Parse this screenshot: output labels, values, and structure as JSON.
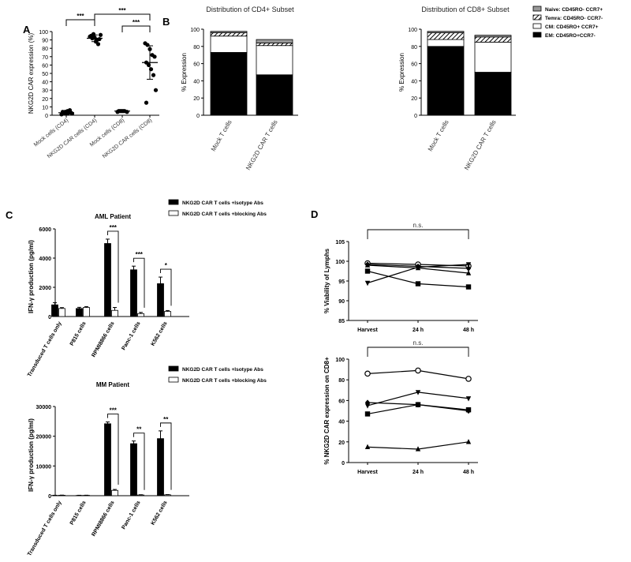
{
  "panels": {
    "a": "A",
    "b": "B",
    "c": "C",
    "d": "D"
  },
  "colors": {
    "black": "#000000",
    "gray": "#999999",
    "white": "#ffffff"
  },
  "chart_data": [
    {
      "id": "A",
      "type": "scatter",
      "ylabel": "NKG2D CAR expression (%)",
      "ylim": [
        0,
        100
      ],
      "yticks": [
        0,
        10,
        20,
        30,
        40,
        50,
        60,
        70,
        80,
        90,
        100
      ],
      "categories": [
        "Mock cells (CD4)",
        "NKG2D CAR cells (CD4)",
        "Mock cells (CD8)",
        "NKG2D CAR cells (CD8)"
      ],
      "points": [
        [
          1,
          2,
          2,
          3,
          3,
          4,
          4,
          5,
          6,
          2
        ],
        [
          94,
          92,
          93,
          90,
          91,
          95,
          97,
          88,
          85,
          96
        ],
        [
          4,
          5,
          5,
          5,
          4,
          5,
          5,
          5
        ],
        [
          86,
          84,
          79,
          72,
          70,
          63,
          60,
          55,
          48,
          30,
          15
        ]
      ],
      "means": [
        3,
        92,
        5,
        63
      ],
      "sd": [
        2,
        4,
        0.5,
        20
      ],
      "significance": [
        {
          "from": 0,
          "to": 1,
          "label": "***"
        },
        {
          "from": 1,
          "to": 3,
          "label": "***"
        },
        {
          "from": 2,
          "to": 3,
          "label": "***"
        }
      ]
    },
    {
      "id": "B1",
      "type": "bar",
      "stacked": true,
      "title": "Distribution of CD4+ Subset",
      "ylabel": "% Expression",
      "ylim": [
        0,
        100
      ],
      "yticks": [
        0,
        20,
        40,
        60,
        80,
        100
      ],
      "categories": [
        "Mock T cells",
        "NKG2D CAR T cells"
      ],
      "series": [
        {
          "name": "EM: CD45RO+CCR7-",
          "values": [
            73,
            47
          ]
        },
        {
          "name": "CM: CD45RO+ CCR7+",
          "values": [
            19,
            34
          ]
        },
        {
          "name": "Temra: CD45RO- CCR7-",
          "values": [
            4,
            3
          ]
        },
        {
          "name": "Naive: CD45RO- CCR7+",
          "values": [
            1.5,
            4
          ]
        }
      ]
    },
    {
      "id": "B2",
      "type": "bar",
      "stacked": true,
      "title": "Distribution of CD8+ Subset",
      "ylabel": "% Expression",
      "ylim": [
        0,
        100
      ],
      "yticks": [
        0,
        20,
        40,
        60,
        80,
        100
      ],
      "categories": [
        "Mock T cells",
        "NKG2D CAR T cells"
      ],
      "series": [
        {
          "name": "EM: CD45RO+CCR7-",
          "values": [
            80,
            50
          ]
        },
        {
          "name": "CM: CD45RO+ CCR7+",
          "values": [
            8,
            35
          ]
        },
        {
          "name": "Temra: CD45RO- CCR7-",
          "values": [
            8,
            6
          ]
        },
        {
          "name": "Naive: CD45RO- CCR7+",
          "values": [
            1.5,
            2
          ]
        }
      ],
      "legend": [
        "Naive: CD45RO- CCR7+",
        "Temra: CD45RO- CCR7-",
        "CM: CD45RO+ CCR7+",
        "EM: CD45RO+CCR7-"
      ]
    },
    {
      "id": "C1",
      "type": "bar",
      "title": "AML Patient",
      "ylabel": "IFN-γ production (pg/ml)",
      "ylim": [
        0,
        6000
      ],
      "yticks": [
        0,
        2000,
        4000,
        6000
      ],
      "categories": [
        "Transduced T cells only",
        "P815 cells",
        "RPMI8866 cells",
        "Panc-1 cells",
        "K562 cells"
      ],
      "series": [
        {
          "name": "NKG2D CAR T cells +Isotype Abs",
          "values": [
            800,
            550,
            5000,
            3200,
            2250
          ],
          "err": [
            150,
            80,
            300,
            250,
            450
          ]
        },
        {
          "name": "NKG2D CAR T cells +blocking Abs",
          "values": [
            550,
            620,
            420,
            200,
            350
          ],
          "err": [
            60,
            60,
            200,
            80,
            60
          ]
        }
      ],
      "significance": [
        "",
        "",
        "***",
        "***",
        "*"
      ]
    },
    {
      "id": "C2",
      "type": "bar",
      "title": "MM Patient",
      "ylabel": "IFN-γ production (pg/ml)",
      "ylim": [
        0,
        30000
      ],
      "yticks": [
        0,
        10000,
        20000,
        30000
      ],
      "categories": [
        "Transduced T cells only",
        "P815 cells",
        "RPMI8866 cells",
        "Panc-1 cells",
        "K562 cells"
      ],
      "series": [
        {
          "name": "NKG2D CAR T cells +Isotype Abs",
          "values": [
            100,
            100,
            24200,
            17500,
            19200
          ],
          "err": [
            50,
            50,
            600,
            900,
            2600
          ]
        },
        {
          "name": "NKG2D CAR T cells +blocking Abs",
          "values": [
            150,
            120,
            1800,
            250,
            300
          ],
          "err": [
            50,
            50,
            300,
            80,
            80
          ]
        }
      ],
      "significance": [
        "",
        "",
        "***",
        "**",
        "**"
      ]
    },
    {
      "id": "D1",
      "type": "line",
      "ylabel": "% Viability of Lymphs",
      "ylim": [
        85,
        105
      ],
      "yticks": [
        85,
        90,
        95,
        100,
        105
      ],
      "x": [
        "Harvest",
        "24 h",
        "48 h"
      ],
      "series": [
        {
          "marker": "circle-open",
          "values": [
            99.5,
            99.2,
            98.8
          ]
        },
        {
          "marker": "diamond",
          "values": [
            99.2,
            98.7,
            98.2
          ]
        },
        {
          "marker": "triangle",
          "values": [
            99.0,
            98.3,
            97.0
          ]
        },
        {
          "marker": "triangle-down",
          "values": [
            94.5,
            98.5,
            99.2
          ]
        },
        {
          "marker": "square",
          "values": [
            97.5,
            94.3,
            93.5
          ]
        }
      ],
      "annotation": "n.s."
    },
    {
      "id": "D2",
      "type": "line",
      "ylabel": "% NKG2D CAR expression on CD8+",
      "ylim": [
        0,
        100
      ],
      "yticks": [
        0,
        20,
        40,
        60,
        80,
        100
      ],
      "x": [
        "Harvest",
        "24 h",
        "48 h"
      ],
      "series": [
        {
          "marker": "circle-open",
          "values": [
            86,
            89,
            81
          ]
        },
        {
          "marker": "triangle-down",
          "values": [
            55,
            68,
            62
          ]
        },
        {
          "marker": "diamond",
          "values": [
            58,
            56,
            50
          ]
        },
        {
          "marker": "square",
          "values": [
            47,
            56,
            51
          ]
        },
        {
          "marker": "triangle",
          "values": [
            15,
            13,
            20
          ]
        }
      ],
      "annotation": "n.s."
    }
  ]
}
